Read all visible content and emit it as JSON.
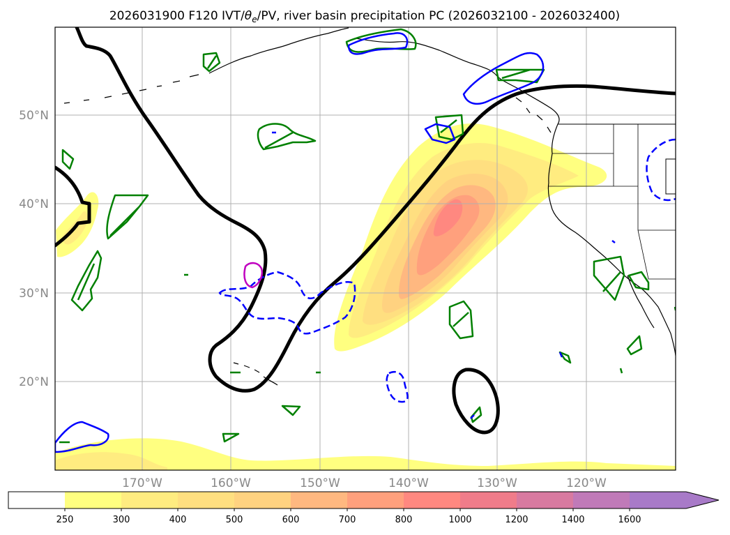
{
  "title": "2026031900 F120 IVT/θe/PV, river basin precipitation PC (2026032100 - 2026032400)",
  "title_parts": {
    "prefix": "2026031900 F120 IVT/",
    "theta": "θ",
    "sub": "e",
    "suffix": "/PV, river basin precipitation PC (2026032100 - 2026032400)"
  },
  "latitude_labels": [
    "50°N",
    "40°N",
    "30°N",
    "20°N"
  ],
  "longitude_labels": [
    "170°W",
    "160°W",
    "150°W",
    "140°W",
    "130°W",
    "120°W"
  ],
  "colorbar": {
    "tick_labels": [
      "250",
      "300",
      "400",
      "500",
      "600",
      "700",
      "800",
      "1000",
      "1200",
      "1400",
      "1600"
    ],
    "colors": [
      "#ffffff",
      "#ffff80",
      "#ffec80",
      "#ffdf80",
      "#ffd280",
      "#ffb880",
      "#ffa07d",
      "#ff8880",
      "#f07c8a",
      "#d87aa0",
      "#c07ab8",
      "#a87ac8"
    ],
    "extend": "max"
  },
  "colors": {
    "contour_thick": "#000000",
    "pv_green": "#008000",
    "theta_blue": "#0000ff",
    "magenta": "#c000c0",
    "grid": "#b0b0b0",
    "tick_label": "#888888"
  }
}
